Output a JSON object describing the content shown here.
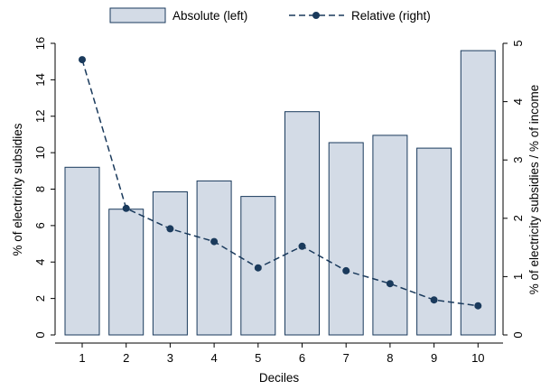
{
  "chart_data": {
    "type": "bar",
    "categories": [
      "1",
      "2",
      "3",
      "4",
      "5",
      "6",
      "7",
      "8",
      "9",
      "10"
    ],
    "series": [
      {
        "name": "Absolute (left)",
        "type": "bar",
        "axis": "left",
        "values": [
          9.2,
          6.9,
          7.85,
          8.45,
          7.6,
          12.25,
          10.55,
          10.95,
          10.25,
          15.6
        ]
      },
      {
        "name": "Relative (right)",
        "type": "line",
        "axis": "right",
        "values": [
          4.72,
          2.17,
          1.82,
          1.6,
          1.15,
          1.52,
          1.1,
          0.88,
          0.6,
          0.5
        ]
      }
    ],
    "xlabel": "Deciles",
    "ylabel_left": "% of electricity subsidies",
    "ylabel_right": "% of electricity subsidies / % of income",
    "ylim_left": [
      0,
      16
    ],
    "ylim_right": [
      0,
      5
    ],
    "yticks_left": [
      "0",
      "2",
      "4",
      "6",
      "8",
      "10",
      "12",
      "14",
      "16"
    ],
    "yticks_right": [
      "0",
      "1",
      "2",
      "3",
      "4",
      "5"
    ],
    "grid": false,
    "legend_position": "top",
    "colors": {
      "bar_fill": "#d3dbe6",
      "bar_stroke": "#1a3a5c",
      "line": "#1a3a5c",
      "marker": "#1a3a5c"
    }
  }
}
